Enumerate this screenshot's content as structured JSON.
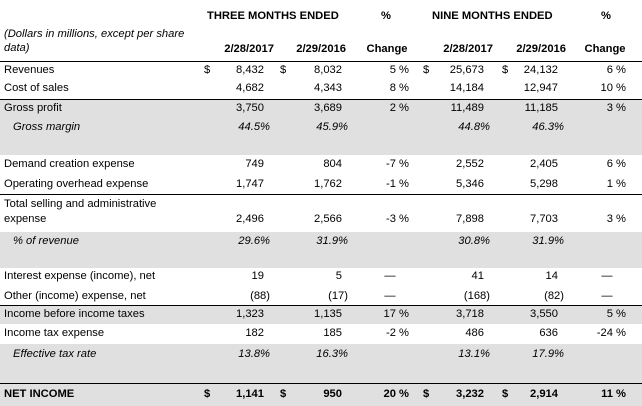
{
  "header": {
    "three_months": "THREE MONTHS ENDED",
    "nine_months": "NINE MONTHS ENDED",
    "pct": "%",
    "note_line1": "(Dollars in millions, except per share",
    "note_line2": "data)",
    "d1": "2/28/2017",
    "d2": "2/29/2016",
    "change": "Change"
  },
  "rows": [
    {
      "label": "Revenues",
      "c1": "$",
      "v1": "8,432",
      "c2": "$",
      "v2": "8,032",
      "p1": "5 %",
      "c3": "$",
      "v3": "25,673",
      "c4": "$",
      "v4": "24,132",
      "p2": "6 %"
    },
    {
      "label": "Cost of sales",
      "v1": "4,682",
      "v2": "4,343",
      "p1": "8 %",
      "v3": "14,184",
      "v4": "12,947",
      "p2": "10 %"
    },
    {
      "label": "Gross profit",
      "v1": "3,750",
      "v2": "3,689",
      "p1": "2 %",
      "v3": "11,489",
      "v4": "11,185",
      "p2": "3 %"
    },
    {
      "label": "Gross margin",
      "v1": "44.5%",
      "v2": "45.9%",
      "v3": "44.8%",
      "v4": "46.3%"
    },
    {
      "label": "Demand creation expense",
      "v1": "749",
      "v2": "804",
      "p1": "-7 %",
      "v3": "2,552",
      "v4": "2,405",
      "p2": "6 %"
    },
    {
      "label": "Operating overhead expense",
      "v1": "1,747",
      "v2": "1,762",
      "p1": "-1 %",
      "v3": "5,346",
      "v4": "5,298",
      "p2": "1 %"
    },
    {
      "label_line1": "Total selling and administrative",
      "label_line2": "expense",
      "v1": "2,496",
      "v2": "2,566",
      "p1": "-3 %",
      "v3": "7,898",
      "v4": "7,703",
      "p2": "3 %"
    },
    {
      "label": "% of revenue",
      "v1": "29.6%",
      "v2": "31.9%",
      "v3": "30.8%",
      "v4": "31.9%"
    },
    {
      "label": "Interest expense (income), net",
      "v1": "19",
      "v2": "5",
      "p1": "—",
      "v3": "41",
      "v4": "14",
      "p2": "—"
    },
    {
      "label": "Other (income) expense, net",
      "v1": "(88)",
      "v2": "(17)",
      "p1": "—",
      "v3": "(168)",
      "v4": "(82)",
      "p2": "—"
    },
    {
      "label": "Income before income taxes",
      "v1": "1,323",
      "v2": "1,135",
      "p1": "17 %",
      "v3": "3,718",
      "v4": "3,550",
      "p2": "5 %"
    },
    {
      "label": "Income tax expense",
      "v1": "182",
      "v2": "185",
      "p1": "-2 %",
      "v3": "486",
      "v4": "636",
      "p2": "-24 %"
    },
    {
      "label": "Effective tax rate",
      "v1": "13.8%",
      "v2": "16.3%",
      "v3": "13.1%",
      "v4": "17.9%"
    },
    {
      "label": "NET INCOME",
      "c1": "$",
      "v1": "1,141",
      "c2": "$",
      "v2": "950",
      "p1": "20 %",
      "c3": "$",
      "v3": "3,232",
      "c4": "$",
      "v4": "2,914",
      "p2": "11 %"
    }
  ]
}
